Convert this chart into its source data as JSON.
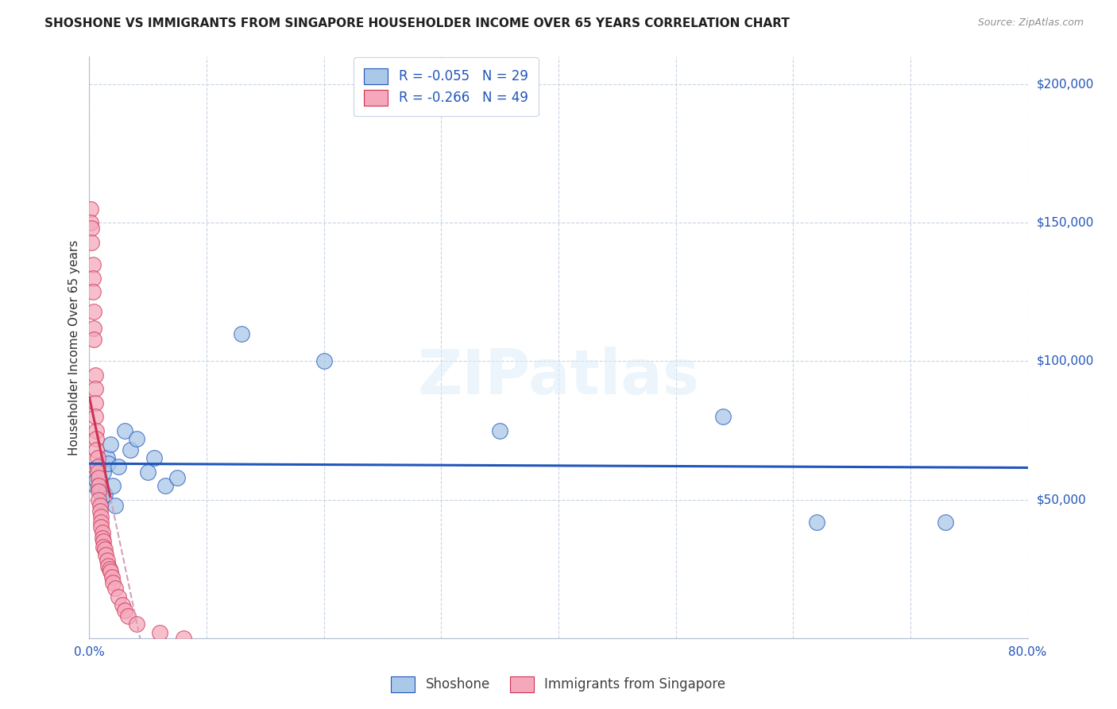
{
  "title": "SHOSHONE VS IMMIGRANTS FROM SINGAPORE HOUSEHOLDER INCOME OVER 65 YEARS CORRELATION CHART",
  "source": "Source: ZipAtlas.com",
  "ylabel": "Householder Income Over 65 years",
  "legend_label1": "Shoshone",
  "legend_label2": "Immigrants from Singapore",
  "r1": -0.055,
  "n1": 29,
  "r2": -0.266,
  "n2": 49,
  "watermark": "ZIPatlas",
  "xlim": [
    0.0,
    0.8
  ],
  "ylim": [
    0,
    210000
  ],
  "xticks": [
    0.0,
    0.1,
    0.2,
    0.3,
    0.4,
    0.5,
    0.6,
    0.7,
    0.8
  ],
  "xticklabels": [
    "0.0%",
    "",
    "",
    "",
    "",
    "",
    "",
    "",
    "80.0%"
  ],
  "ytick_positions": [
    0,
    50000,
    100000,
    150000,
    200000
  ],
  "ytick_labels": [
    "",
    "$50,000",
    "$100,000",
    "$150,000",
    "$200,000"
  ],
  "color_shoshone": "#aac8e8",
  "color_singapore": "#f5a8bb",
  "line_color_shoshone": "#2255bb",
  "line_color_singapore": "#cc3355",
  "line_color_singapore_dash": "#d4a0b8",
  "background_color": "#ffffff",
  "grid_color": "#c8d4e4",
  "shoshone_x": [
    0.004,
    0.005,
    0.006,
    0.007,
    0.008,
    0.009,
    0.01,
    0.011,
    0.012,
    0.013,
    0.015,
    0.016,
    0.018,
    0.02,
    0.022,
    0.025,
    0.03,
    0.035,
    0.04,
    0.05,
    0.055,
    0.065,
    0.075,
    0.13,
    0.2,
    0.35,
    0.54,
    0.62,
    0.73
  ],
  "shoshone_y": [
    58000,
    55000,
    57000,
    62000,
    54000,
    56000,
    53000,
    50000,
    60000,
    52000,
    65000,
    63000,
    70000,
    55000,
    48000,
    62000,
    75000,
    68000,
    72000,
    60000,
    65000,
    55000,
    58000,
    110000,
    100000,
    75000,
    80000,
    42000,
    42000
  ],
  "singapore_x": [
    0.001,
    0.001,
    0.002,
    0.002,
    0.003,
    0.003,
    0.003,
    0.004,
    0.004,
    0.004,
    0.005,
    0.005,
    0.005,
    0.005,
    0.006,
    0.006,
    0.006,
    0.007,
    0.007,
    0.007,
    0.008,
    0.008,
    0.008,
    0.008,
    0.009,
    0.009,
    0.01,
    0.01,
    0.01,
    0.011,
    0.011,
    0.012,
    0.012,
    0.013,
    0.014,
    0.015,
    0.016,
    0.017,
    0.018,
    0.019,
    0.02,
    0.022,
    0.025,
    0.028,
    0.03,
    0.033,
    0.04,
    0.06,
    0.08
  ],
  "singapore_y": [
    155000,
    150000,
    148000,
    143000,
    135000,
    130000,
    125000,
    118000,
    112000,
    108000,
    95000,
    90000,
    85000,
    80000,
    75000,
    72000,
    68000,
    65000,
    62000,
    60000,
    58000,
    55000,
    53000,
    50000,
    48000,
    46000,
    44000,
    42000,
    40000,
    38000,
    36000,
    35000,
    33000,
    32000,
    30000,
    28000,
    26000,
    25000,
    24000,
    22000,
    20000,
    18000,
    15000,
    12000,
    10000,
    8000,
    5000,
    2000,
    0
  ],
  "sg_line_x_start": 0.0,
  "sg_line_x_solid_end": 0.018,
  "sg_line_x_end": 0.25
}
